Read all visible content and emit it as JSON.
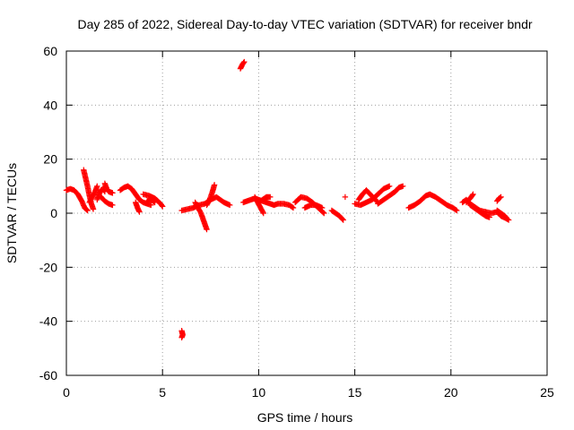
{
  "chart_data": {
    "type": "scatter",
    "title": "Day 285 of 2022, Sidereal Day-to-day VTEC variation (SDTVAR) for receiver bndr",
    "xlabel": "GPS time / hours",
    "ylabel": "SDTVAR / TECUs",
    "xlim": [
      0,
      25
    ],
    "ylim": [
      -60,
      60
    ],
    "xticks": [
      0,
      5,
      10,
      15,
      20,
      25
    ],
    "yticks": [
      -60,
      -40,
      -20,
      0,
      20,
      40,
      60
    ],
    "grid": true,
    "marker": "+",
    "color": "#ff0000",
    "series": [
      {
        "name": "SDTVAR",
        "segments": [
          [
            [
              0.0,
              8.5
            ],
            [
              0.2,
              9.0
            ],
            [
              0.4,
              8.5
            ],
            [
              0.6,
              7.0
            ],
            [
              0.8,
              4.5
            ],
            [
              0.95,
              2.0
            ],
            [
              1.1,
              1.0
            ]
          ],
          [
            [
              0.9,
              16.0
            ],
            [
              1.0,
              13.0
            ],
            [
              1.1,
              10.0
            ],
            [
              1.2,
              6.5
            ],
            [
              1.3,
              3.5
            ],
            [
              1.4,
              1.5
            ]
          ],
          [
            [
              1.2,
              4.0
            ],
            [
              1.35,
              6.0
            ],
            [
              1.5,
              8.0
            ],
            [
              1.6,
              10.0
            ]
          ],
          [
            [
              1.6,
              5.0
            ],
            [
              1.7,
              7.0
            ],
            [
              1.8,
              8.5
            ],
            [
              1.9,
              9.0
            ],
            [
              2.0,
              8.0
            ]
          ],
          [
            [
              2.0,
              11.0
            ],
            [
              2.1,
              9.0
            ],
            [
              2.2,
              8.0
            ],
            [
              2.4,
              7.5
            ]
          ],
          [
            [
              1.8,
              6.0
            ],
            [
              2.0,
              4.5
            ],
            [
              2.2,
              3.5
            ],
            [
              2.4,
              3.0
            ]
          ],
          [
            [
              2.8,
              8.5
            ],
            [
              3.0,
              9.5
            ],
            [
              3.2,
              10.0
            ],
            [
              3.4,
              9.0
            ],
            [
              3.6,
              7.0
            ],
            [
              3.8,
              5.0
            ],
            [
              4.0,
              4.0
            ],
            [
              4.2,
              3.5
            ],
            [
              4.4,
              3.0
            ]
          ],
          [
            [
              3.6,
              4.0
            ],
            [
              3.7,
              2.0
            ],
            [
              3.8,
              0.5
            ]
          ],
          [
            [
              4.0,
              7.0
            ],
            [
              4.3,
              6.5
            ],
            [
              4.6,
              5.5
            ],
            [
              4.9,
              3.5
            ],
            [
              5.0,
              2.5
            ]
          ],
          [
            [
              4.2,
              4.5
            ],
            [
              4.4,
              5.0
            ],
            [
              4.6,
              4.0
            ]
          ],
          [
            [
              6.0,
              -43.5
            ],
            [
              6.05,
              -45.0
            ],
            [
              6.0,
              -46.0
            ]
          ],
          [
            [
              6.0,
              1.0
            ],
            [
              6.3,
              1.5
            ],
            [
              6.6,
              2.0
            ],
            [
              6.9,
              3.0
            ],
            [
              7.2,
              3.5
            ],
            [
              7.5,
              5.0
            ],
            [
              7.8,
              6.0
            ],
            [
              8.0,
              5.0
            ],
            [
              8.2,
              4.0
            ],
            [
              8.5,
              3.0
            ]
          ],
          [
            [
              6.7,
              4.0
            ],
            [
              6.85,
              2.0
            ],
            [
              7.0,
              0.0
            ],
            [
              7.1,
              -2.0
            ],
            [
              7.2,
              -4.0
            ],
            [
              7.3,
              -6.0
            ]
          ],
          [
            [
              7.3,
              3.0
            ],
            [
              7.45,
              5.0
            ],
            [
              7.6,
              8.0
            ],
            [
              7.7,
              10.5
            ]
          ],
          [
            [
              9.05,
              53.5
            ],
            [
              9.15,
              55.0
            ],
            [
              9.25,
              56.0
            ]
          ],
          [
            [
              9.2,
              4.0
            ],
            [
              9.4,
              4.5
            ],
            [
              9.6,
              5.0
            ],
            [
              9.8,
              5.5
            ],
            [
              10.0,
              5.0
            ],
            [
              10.2,
              4.5
            ],
            [
              10.4,
              4.0
            ],
            [
              10.6,
              3.5
            ],
            [
              10.8,
              3.0
            ],
            [
              11.0,
              3.5
            ],
            [
              11.3,
              3.5
            ],
            [
              11.6,
              3.0
            ],
            [
              11.8,
              2.0
            ]
          ],
          [
            [
              9.8,
              6.0
            ],
            [
              9.95,
              4.0
            ],
            [
              10.1,
              2.0
            ],
            [
              10.25,
              0.0
            ]
          ],
          [
            [
              10.0,
              4.0
            ],
            [
              10.2,
              5.0
            ],
            [
              10.4,
              6.0
            ],
            [
              10.6,
              6.0
            ]
          ],
          [
            [
              11.9,
              4.0
            ],
            [
              12.2,
              6.0
            ],
            [
              12.5,
              5.5
            ],
            [
              12.8,
              4.0
            ],
            [
              13.1,
              2.0
            ],
            [
              13.4,
              0.0
            ]
          ],
          [
            [
              12.4,
              2.0
            ],
            [
              12.7,
              3.0
            ],
            [
              13.0,
              3.0
            ],
            [
              13.3,
              2.0
            ]
          ],
          [
            [
              13.8,
              1.0
            ],
            [
              14.0,
              0.0
            ],
            [
              14.2,
              -1.0
            ],
            [
              14.4,
              -2.5
            ]
          ],
          [
            [
              14.5,
              6.0
            ]
          ],
          [
            [
              15.0,
              3.5
            ],
            [
              15.3,
              3.0
            ],
            [
              15.6,
              4.0
            ],
            [
              15.9,
              5.0
            ],
            [
              16.2,
              7.0
            ],
            [
              16.5,
              9.0
            ],
            [
              16.8,
              10.0
            ]
          ],
          [
            [
              15.2,
              5.0
            ],
            [
              15.4,
              7.0
            ],
            [
              15.6,
              8.5
            ],
            [
              15.8,
              7.0
            ],
            [
              16.0,
              5.5
            ],
            [
              16.2,
              4.0
            ]
          ],
          [
            [
              16.2,
              3.5
            ],
            [
              16.5,
              5.0
            ],
            [
              16.8,
              6.5
            ],
            [
              17.1,
              8.0
            ],
            [
              17.3,
              9.5
            ],
            [
              17.5,
              10.0
            ]
          ],
          [
            [
              17.8,
              2.0
            ],
            [
              18.1,
              3.0
            ],
            [
              18.4,
              4.5
            ],
            [
              18.7,
              6.5
            ],
            [
              18.9,
              7.0
            ],
            [
              19.2,
              6.0
            ],
            [
              19.5,
              4.5
            ],
            [
              19.8,
              3.0
            ],
            [
              20.1,
              2.0
            ],
            [
              20.3,
              1.0
            ]
          ],
          [
            [
              20.6,
              4.0
            ],
            [
              20.8,
              5.0
            ],
            [
              21.0,
              3.5
            ],
            [
              21.2,
              2.5
            ],
            [
              21.5,
              1.0
            ],
            [
              21.8,
              0.5
            ],
            [
              22.1,
              0.0
            ],
            [
              22.4,
              0.5
            ],
            [
              22.6,
              -1.0
            ],
            [
              22.9,
              -2.0
            ]
          ],
          [
            [
              20.8,
              4.0
            ],
            [
              21.0,
              5.5
            ],
            [
              21.15,
              7.0
            ]
          ],
          [
            [
              21.0,
              3.0
            ],
            [
              21.2,
              2.0
            ],
            [
              21.4,
              1.0
            ],
            [
              21.6,
              0.0
            ],
            [
              21.8,
              -1.0
            ],
            [
              22.0,
              -1.5
            ]
          ],
          [
            [
              22.4,
              4.5
            ],
            [
              22.5,
              5.5
            ],
            [
              22.6,
              6.0
            ]
          ],
          [
            [
              22.4,
              1.0
            ],
            [
              22.6,
              0.0
            ],
            [
              22.8,
              -1.0
            ],
            [
              22.9,
              -2.0
            ],
            [
              23.0,
              -2.5
            ]
          ]
        ]
      }
    ]
  }
}
